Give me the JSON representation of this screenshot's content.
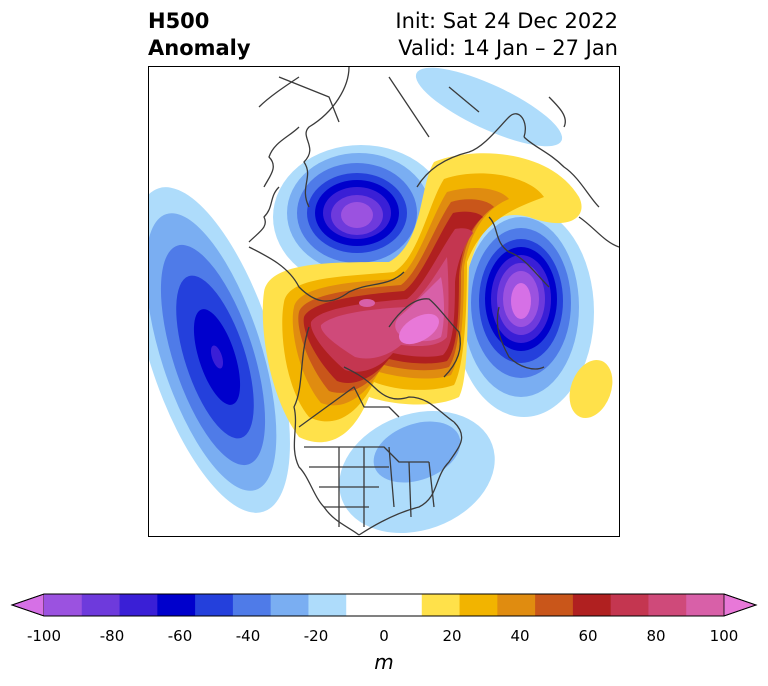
{
  "header": {
    "title_line1": "H500",
    "title_line2": "Anomaly",
    "init": "Init: Sat 24 Dec 2022",
    "valid": "Valid: 14 Jan – 27 Jan"
  },
  "colorbar": {
    "unit": "m",
    "ticks": [
      "-100",
      "-80",
      "-60",
      "-40",
      "-20",
      "0",
      "20",
      "40",
      "60",
      "80",
      "100"
    ],
    "colors": [
      "#d670e6",
      "#9b52e0",
      "#6e3adc",
      "#3a1fd6",
      "#0000cc",
      "#2440dc",
      "#4f7be8",
      "#7aaef2",
      "#aedcfb",
      "#ffffff",
      "#ffffff",
      "#ffe14a",
      "#f2b400",
      "#e08c10",
      "#c9561a",
      "#b02020",
      "#c43650",
      "#cf4a7a",
      "#d860a8",
      "#e878d8"
    ]
  },
  "map": {
    "colors": {
      "land_line": "#3a3a3a",
      "neg20": "#aedcfb",
      "neg30": "#7aaef2",
      "neg40": "#4f7be8",
      "neg50": "#2440dc",
      "neg60": "#0000cc",
      "neg70": "#3a1fd6",
      "neg80": "#6e3adc",
      "neg90": "#9b52e0",
      "neg100": "#d670e6",
      "pos10": "#ffe14a",
      "pos20": "#f2b400",
      "pos30": "#e08c10",
      "pos40": "#c9561a",
      "pos50": "#b02020",
      "pos60": "#c43650",
      "pos70": "#cf4a7a",
      "pos80": "#d860a8",
      "pos90": "#e878d8"
    }
  }
}
